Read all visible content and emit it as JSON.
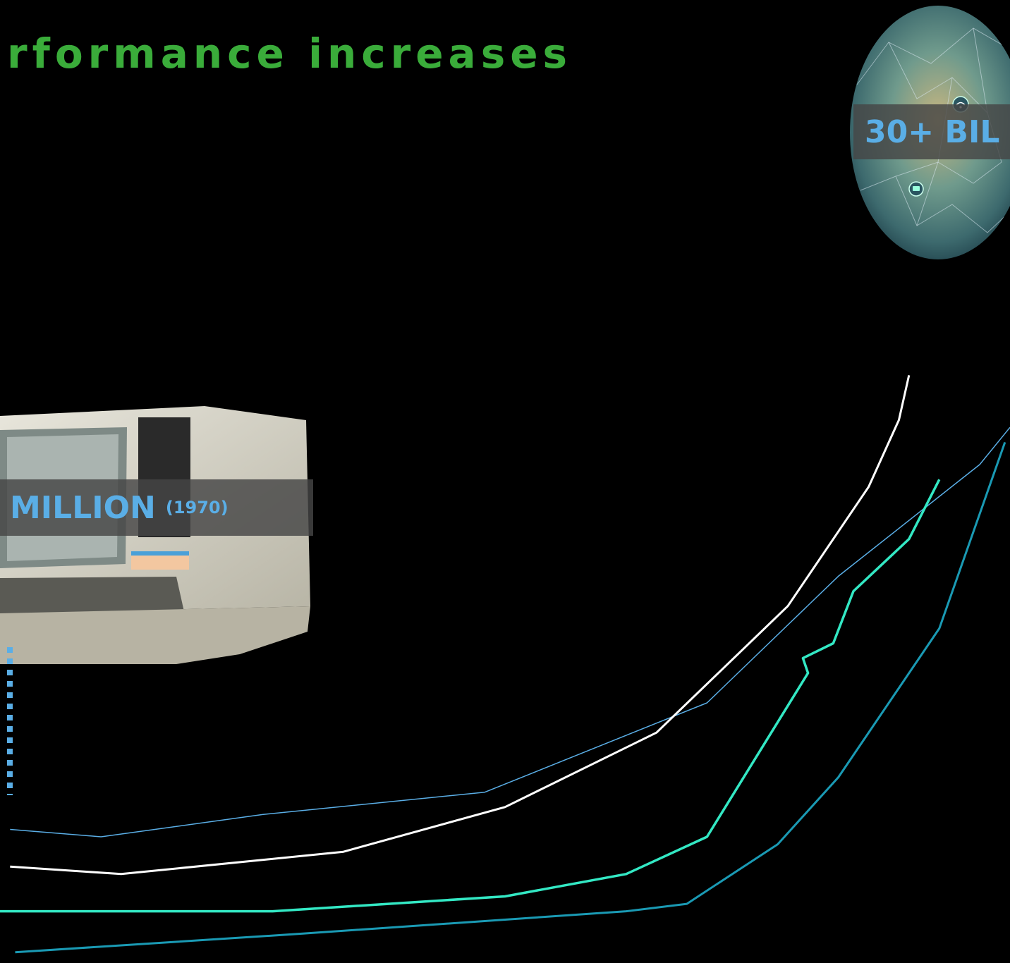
{
  "slide": {
    "title": "rformance increases"
  },
  "callouts": {
    "million": {
      "main": "MILLION",
      "year": "(1970)"
    },
    "billion": {
      "main": "30+ BIL"
    }
  },
  "colors": {
    "title": "#3aac3a",
    "callout_text": "#5aaee6",
    "series": [
      "#5aaee6",
      "#ffffff",
      "#33e8c4",
      "#1a9ab4"
    ]
  },
  "icons": [
    "vintage-terminal-computer-icon",
    "network-globe-icon",
    "wifi-icon",
    "device-icon"
  ],
  "chart_data": {
    "type": "line",
    "title": "",
    "xlabel": "",
    "ylabel": "",
    "xlim": [
      0,
      100
    ],
    "ylim": [
      0,
      100
    ],
    "grid": false,
    "legend": "none",
    "series": [
      {
        "color": "#5aaee6",
        "points": [
          [
            1,
            17
          ],
          [
            10,
            16
          ],
          [
            26,
            19
          ],
          [
            48,
            22
          ],
          [
            59,
            28
          ],
          [
            70,
            34
          ],
          [
            83,
            51
          ],
          [
            97,
            66
          ],
          [
            100,
            71
          ]
        ]
      },
      {
        "color": "#ffffff",
        "points": [
          [
            1,
            12
          ],
          [
            12,
            11
          ],
          [
            34,
            14
          ],
          [
            50,
            20
          ],
          [
            65,
            30
          ],
          [
            78,
            47
          ],
          [
            86,
            63
          ],
          [
            89,
            72
          ],
          [
            90,
            78
          ]
        ]
      },
      {
        "color": "#33e8c4",
        "points": [
          [
            0,
            6
          ],
          [
            27,
            6
          ],
          [
            50,
            8
          ],
          [
            62,
            11
          ],
          [
            70,
            16
          ],
          [
            80,
            38
          ],
          [
            79.5,
            40
          ],
          [
            82.5,
            42
          ],
          [
            84.5,
            49
          ],
          [
            90,
            56
          ],
          [
            93,
            64
          ]
        ]
      },
      {
        "color": "#1a9ab4",
        "points": [
          [
            1.5,
            0.5
          ],
          [
            30,
            3
          ],
          [
            62,
            6
          ],
          [
            68,
            7
          ],
          [
            77,
            15
          ],
          [
            83,
            24
          ],
          [
            93,
            44
          ],
          [
            99.5,
            69
          ]
        ]
      }
    ]
  }
}
